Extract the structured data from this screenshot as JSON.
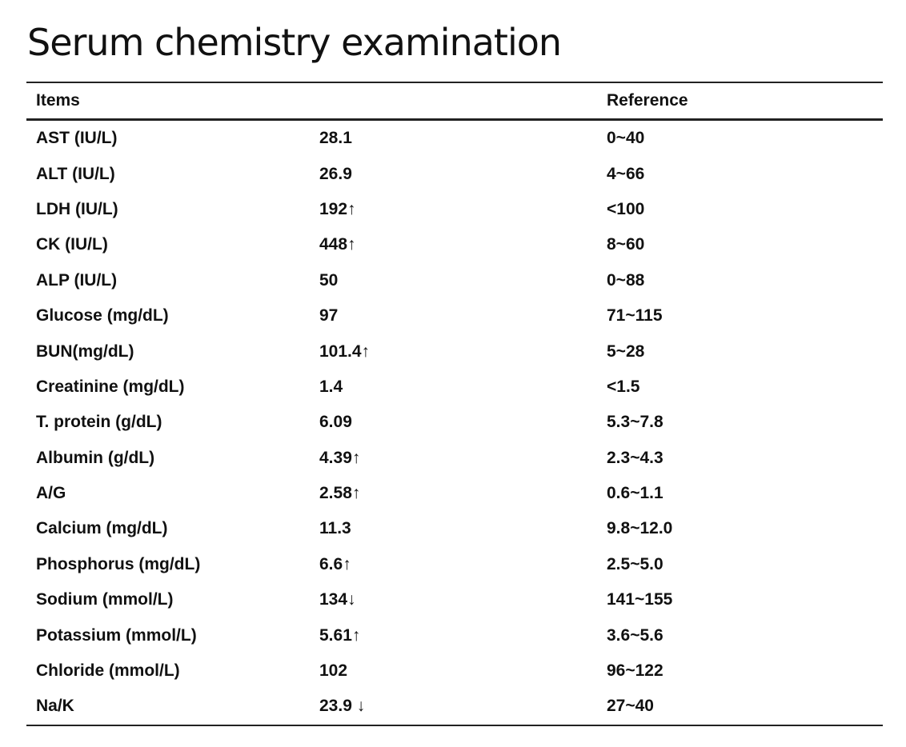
{
  "title": "Serum chemistry examination",
  "header": {
    "items": "Items",
    "value": "",
    "reference": "Reference"
  },
  "rows": [
    {
      "item": "AST (IU/L)",
      "value": "28.1",
      "reference": "0~40"
    },
    {
      "item": "ALT (IU/L)",
      "value": "26.9",
      "reference": "4~66"
    },
    {
      "item": "LDH (IU/L)",
      "value": "192↑",
      "reference": "<100"
    },
    {
      "item": "CK (IU/L)",
      "value": "448↑",
      "reference": "8~60"
    },
    {
      "item": "ALP (IU/L)",
      "value": "50",
      "reference": "0~88"
    },
    {
      "item": "Glucose (mg/dL)",
      "value": "97",
      "reference": "71~115"
    },
    {
      "item": "BUN(mg/dL)",
      "value": "101.4↑",
      "reference": "5~28"
    },
    {
      "item": "Creatinine (mg/dL)",
      "value": "1.4",
      "reference": "<1.5"
    },
    {
      "item": "T. protein (g/dL)",
      "value": "6.09",
      "reference": "5.3~7.8"
    },
    {
      "item": "Albumin (g/dL)",
      "value": "4.39↑",
      "reference": "2.3~4.3"
    },
    {
      "item": "A/G",
      "value": "2.58↑",
      "reference": "0.6~1.1"
    },
    {
      "item": "Calcium (mg/dL)",
      "value": "11.3",
      "reference": "9.8~12.0"
    },
    {
      "item": "Phosphorus (mg/dL)",
      "value": "6.6↑",
      "reference": "2.5~5.0"
    },
    {
      "item": "Sodium (mmol/L)",
      "value": "134↓",
      "reference": "141~155"
    },
    {
      "item": "Potassium (mmol/L)",
      "value": "5.61↑",
      "reference": "3.6~5.6"
    },
    {
      "item": "Chloride (mmol/L)",
      "value": "102",
      "reference": "96~122"
    },
    {
      "item": "Na/K",
      "value": "23.9 ↓",
      "reference": "27~40"
    }
  ]
}
